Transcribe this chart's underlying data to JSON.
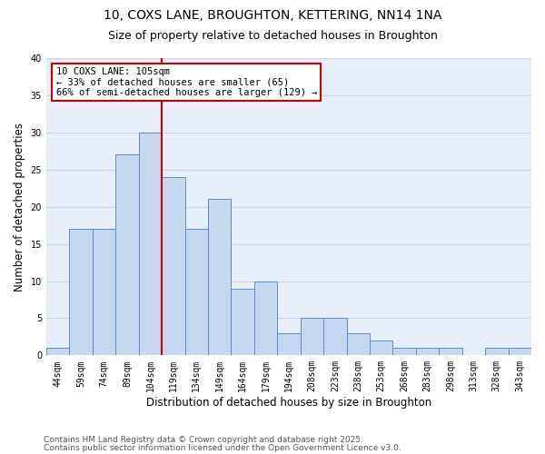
{
  "title1": "10, COXS LANE, BROUGHTON, KETTERING, NN14 1NA",
  "title2": "Size of property relative to detached houses in Broughton",
  "xlabel": "Distribution of detached houses by size in Broughton",
  "ylabel": "Number of detached properties",
  "categories": [
    "44sqm",
    "59sqm",
    "74sqm",
    "89sqm",
    "104sqm",
    "119sqm",
    "134sqm",
    "149sqm",
    "164sqm",
    "179sqm",
    "194sqm",
    "208sqm",
    "223sqm",
    "238sqm",
    "253sqm",
    "268sqm",
    "283sqm",
    "298sqm",
    "313sqm",
    "328sqm",
    "343sqm"
  ],
  "values": [
    1,
    17,
    17,
    27,
    30,
    24,
    17,
    21,
    9,
    10,
    3,
    5,
    5,
    3,
    2,
    1,
    1,
    1,
    0,
    1,
    1
  ],
  "bar_color": "#c5d8f0",
  "bar_edge_color": "#5b8fc9",
  "grid_color": "#c8d4e8",
  "bg_color": "#e8eef8",
  "vline_color": "#cc0000",
  "annotation_text": "10 COXS LANE: 105sqm\n← 33% of detached houses are smaller (65)\n66% of semi-detached houses are larger (129) →",
  "annotation_box_color": "#ffffff",
  "annotation_edge_color": "#cc0000",
  "ylim": [
    0,
    40
  ],
  "yticks": [
    0,
    5,
    10,
    15,
    20,
    25,
    30,
    35,
    40
  ],
  "footnote1": "Contains HM Land Registry data © Crown copyright and database right 2025.",
  "footnote2": "Contains public sector information licensed under the Open Government Licence v3.0.",
  "title_fontsize": 10,
  "subtitle_fontsize": 9,
  "label_fontsize": 8.5,
  "tick_fontsize": 7,
  "annotation_fontsize": 7.5,
  "footnote_fontsize": 6.5
}
